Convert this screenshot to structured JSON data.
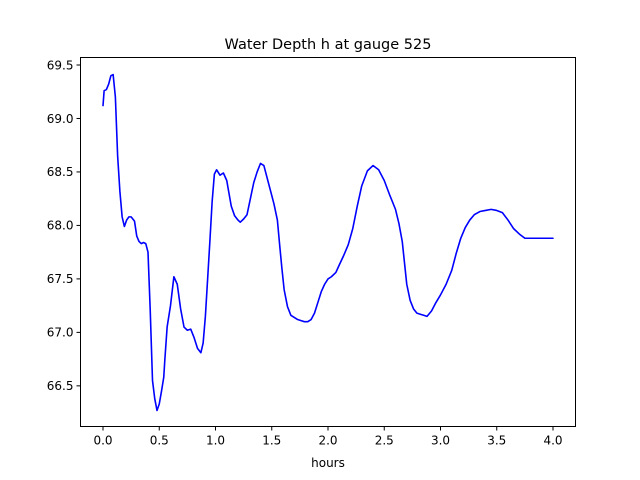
{
  "chart_data": {
    "type": "line",
    "title": "Water Depth h at gauge 525",
    "xlabel": "hours",
    "ylabel": "",
    "xlim": [
      -0.2,
      4.2
    ],
    "ylim": [
      66.12,
      69.57
    ],
    "xticks": [
      0.0,
      0.5,
      1.0,
      1.5,
      2.0,
      2.5,
      3.0,
      3.5,
      4.0
    ],
    "xtick_labels": [
      "0.0",
      "0.5",
      "1.0",
      "1.5",
      "2.0",
      "2.5",
      "3.0",
      "3.5",
      "4.0"
    ],
    "yticks": [
      66.5,
      67.0,
      67.5,
      68.0,
      68.5,
      69.0,
      69.5
    ],
    "ytick_labels": [
      "66.5",
      "67.0",
      "67.5",
      "68.0",
      "68.5",
      "69.0",
      "69.5"
    ],
    "grid": false,
    "series": [
      {
        "color": "#0000ff",
        "x": [
          0.0,
          0.01,
          0.03,
          0.05,
          0.07,
          0.09,
          0.11,
          0.13,
          0.15,
          0.17,
          0.19,
          0.21,
          0.23,
          0.25,
          0.28,
          0.3,
          0.32,
          0.34,
          0.36,
          0.38,
          0.4,
          0.42,
          0.44,
          0.46,
          0.48,
          0.5,
          0.52,
          0.54,
          0.55,
          0.57,
          0.6,
          0.63,
          0.66,
          0.69,
          0.72,
          0.75,
          0.78,
          0.81,
          0.84,
          0.87,
          0.89,
          0.91,
          0.93,
          0.95,
          0.97,
          0.99,
          1.01,
          1.04,
          1.07,
          1.1,
          1.12,
          1.14,
          1.17,
          1.2,
          1.22,
          1.25,
          1.28,
          1.31,
          1.34,
          1.37,
          1.4,
          1.43,
          1.46,
          1.49,
          1.52,
          1.55,
          1.57,
          1.59,
          1.61,
          1.64,
          1.67,
          1.7,
          1.73,
          1.76,
          1.79,
          1.82,
          1.85,
          1.88,
          1.91,
          1.94,
          1.97,
          2.0,
          2.03,
          2.07,
          2.1,
          2.14,
          2.18,
          2.22,
          2.26,
          2.3,
          2.35,
          2.4,
          2.45,
          2.5,
          2.55,
          2.6,
          2.63,
          2.66,
          2.68,
          2.7,
          2.73,
          2.76,
          2.79,
          2.82,
          2.85,
          2.88,
          2.92,
          2.96,
          3.0,
          3.05,
          3.1,
          3.14,
          3.18,
          3.22,
          3.26,
          3.3,
          3.35,
          3.4,
          3.45,
          3.5,
          3.55,
          3.6,
          3.65,
          3.7,
          3.75,
          3.8,
          3.85,
          3.9,
          3.95,
          4.0
        ],
        "y": [
          69.12,
          69.26,
          69.27,
          69.32,
          69.4,
          69.41,
          69.2,
          68.65,
          68.32,
          68.08,
          67.99,
          68.05,
          68.08,
          68.08,
          68.04,
          67.9,
          67.85,
          67.83,
          67.84,
          67.83,
          67.75,
          67.2,
          66.55,
          66.38,
          66.27,
          66.33,
          66.45,
          66.58,
          66.75,
          67.05,
          67.25,
          67.52,
          67.45,
          67.22,
          67.05,
          67.02,
          67.03,
          66.95,
          66.85,
          66.81,
          66.9,
          67.15,
          67.5,
          67.85,
          68.22,
          68.48,
          68.52,
          68.47,
          68.49,
          68.42,
          68.3,
          68.18,
          68.09,
          68.05,
          68.03,
          68.06,
          68.1,
          68.25,
          68.4,
          68.5,
          68.58,
          68.56,
          68.44,
          68.32,
          68.2,
          68.05,
          67.82,
          67.6,
          67.4,
          67.24,
          67.16,
          67.14,
          67.12,
          67.11,
          67.1,
          67.1,
          67.12,
          67.18,
          67.28,
          67.38,
          67.45,
          67.5,
          67.52,
          67.56,
          67.63,
          67.72,
          67.82,
          67.97,
          68.18,
          68.37,
          68.51,
          68.56,
          68.52,
          68.42,
          68.28,
          68.15,
          68.02,
          67.85,
          67.65,
          67.45,
          67.3,
          67.22,
          67.18,
          67.17,
          67.16,
          67.15,
          67.2,
          67.28,
          67.35,
          67.45,
          67.58,
          67.74,
          67.88,
          67.98,
          68.05,
          68.1,
          68.13,
          68.14,
          68.15,
          68.14,
          68.12,
          68.05,
          67.97,
          67.92,
          67.88,
          67.88,
          67.88,
          67.88,
          67.88,
          67.88
        ]
      }
    ]
  }
}
